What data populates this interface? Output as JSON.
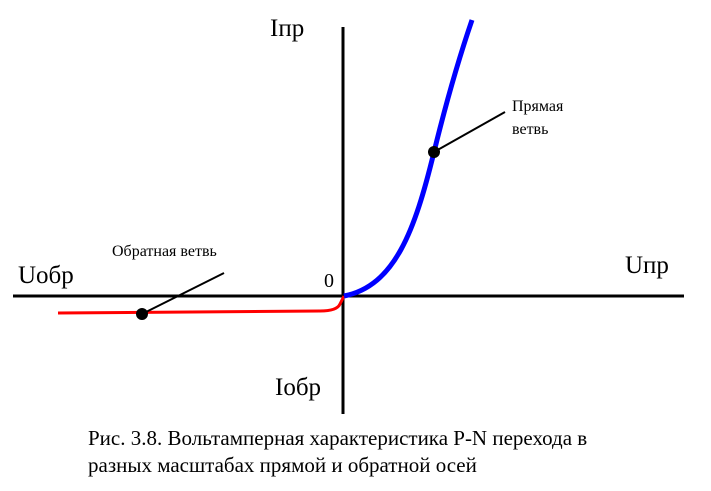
{
  "diagram": {
    "axis_labels": {
      "i_forward": "Iпр",
      "u_forward": "Uпр",
      "u_reverse": "Uобр",
      "i_reverse": "Iобр",
      "origin": "0"
    },
    "annotations": {
      "forward_branch_line1": "Прямая",
      "forward_branch_line2": "ветвь",
      "reverse_branch": "Обратная ветвь"
    },
    "colors": {
      "forward_branch": "#0000ff",
      "reverse_branch": "#ff0000",
      "axes": "#000000"
    }
  },
  "caption": {
    "line1": "Рис. 3.8. Вольтамперная характеристика P-N перехода в",
    "line2": "разных масштабах прямой и обратной осей"
  }
}
